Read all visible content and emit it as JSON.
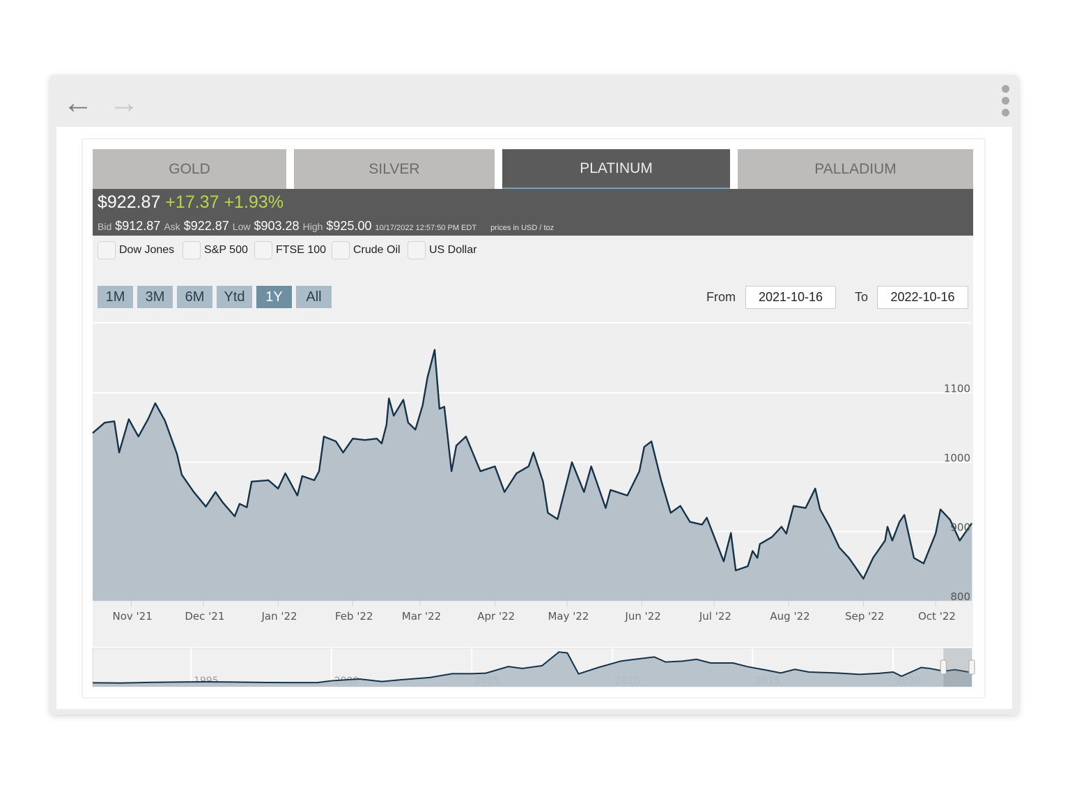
{
  "browser": {
    "back_icon": "arrow-left-icon",
    "forward_icon": "arrow-right-icon",
    "menu_icon": "kebab-menu-icon"
  },
  "tabs": [
    {
      "label": "GOLD"
    },
    {
      "label": "SILVER"
    },
    {
      "label": "PLATINUM",
      "active": true
    },
    {
      "label": "PALLADIUM"
    }
  ],
  "quote": {
    "price": "$922.87",
    "change": "+17.37",
    "change_pct": "+1.93%",
    "change_color": "#b7d650",
    "bid_label": "Bid",
    "bid": "$912.87",
    "ask_label": "Ask",
    "ask": "$922.87",
    "low_label": "Low",
    "low": "$903.28",
    "high_label": "High",
    "high": "$925.00",
    "timestamp": "10/17/2022 12:57:50 PM EDT",
    "units": "prices in USD / toz"
  },
  "compare": [
    {
      "label": "Dow Jones",
      "checked": false
    },
    {
      "label": "S&P 500",
      "checked": false
    },
    {
      "label": "FTSE 100",
      "checked": false
    },
    {
      "label": "Crude Oil",
      "checked": false
    },
    {
      "label": "US Dollar",
      "checked": false
    }
  ],
  "ranges": [
    {
      "label": "1M"
    },
    {
      "label": "3M"
    },
    {
      "label": "6M"
    },
    {
      "label": "Ytd"
    },
    {
      "label": "1Y",
      "active": true
    },
    {
      "label": "All"
    }
  ],
  "date_range": {
    "from_label": "From",
    "from": "2021-10-16",
    "to_label": "To",
    "to": "2022-10-16"
  },
  "chart_data": {
    "type": "area",
    "grid": true,
    "line_color": "#143349",
    "fill_color": "#b2bec6",
    "ylim": [
      800,
      1200
    ],
    "y_ticks": [
      "800",
      "900",
      "1000",
      "1100"
    ],
    "x_ticks": [
      {
        "label": "Nov '21",
        "date": "2021-11-01"
      },
      {
        "label": "Dec '21",
        "date": "2021-12-01"
      },
      {
        "label": "Jan '22",
        "date": "2022-01-01"
      },
      {
        "label": "Feb '22",
        "date": "2022-02-01"
      },
      {
        "label": "Mar '22",
        "date": "2022-03-01"
      },
      {
        "label": "Apr '22",
        "date": "2022-04-01"
      },
      {
        "label": "May '22",
        "date": "2022-05-01"
      },
      {
        "label": "Jun '22",
        "date": "2022-06-01"
      },
      {
        "label": "Jul '22",
        "date": "2022-07-01"
      },
      {
        "label": "Aug '22",
        "date": "2022-08-01"
      },
      {
        "label": "Sep '22",
        "date": "2022-09-01"
      },
      {
        "label": "Oct '22",
        "date": "2022-10-01"
      }
    ],
    "series": [
      {
        "points": [
          [
            "2021-10-16",
            1042
          ],
          [
            "2021-10-21",
            1057
          ],
          [
            "2021-10-25",
            1059
          ],
          [
            "2021-10-27",
            1014
          ],
          [
            "2021-10-31",
            1062
          ],
          [
            "2021-11-04",
            1037
          ],
          [
            "2021-11-08",
            1062
          ],
          [
            "2021-11-11",
            1085
          ],
          [
            "2021-11-15",
            1060
          ],
          [
            "2021-11-20",
            1012
          ],
          [
            "2021-11-22",
            982
          ],
          [
            "2021-11-27",
            957
          ],
          [
            "2021-12-02",
            936
          ],
          [
            "2021-12-06",
            957
          ],
          [
            "2021-12-09",
            942
          ],
          [
            "2021-12-14",
            922
          ],
          [
            "2021-12-16",
            940
          ],
          [
            "2021-12-19",
            935
          ],
          [
            "2021-12-21",
            972
          ],
          [
            "2021-12-28",
            974
          ],
          [
            "2022-01-01",
            962
          ],
          [
            "2022-01-04",
            984
          ],
          [
            "2022-01-09",
            952
          ],
          [
            "2022-01-11",
            980
          ],
          [
            "2022-01-16",
            974
          ],
          [
            "2022-01-18",
            987
          ],
          [
            "2022-01-20",
            1037
          ],
          [
            "2022-01-25",
            1030
          ],
          [
            "2022-01-28",
            1014
          ],
          [
            "2022-02-01",
            1034
          ],
          [
            "2022-02-06",
            1032
          ],
          [
            "2022-02-11",
            1034
          ],
          [
            "2022-02-13",
            1027
          ],
          [
            "2022-02-15",
            1054
          ],
          [
            "2022-02-16",
            1092
          ],
          [
            "2022-02-18",
            1067
          ],
          [
            "2022-02-22",
            1090
          ],
          [
            "2022-02-24",
            1057
          ],
          [
            "2022-02-27",
            1047
          ],
          [
            "2022-03-02",
            1082
          ],
          [
            "2022-03-04",
            1122
          ],
          [
            "2022-03-07",
            1162
          ],
          [
            "2022-03-09",
            1077
          ],
          [
            "2022-03-11",
            1080
          ],
          [
            "2022-03-14",
            987
          ],
          [
            "2022-03-16",
            1024
          ],
          [
            "2022-03-20",
            1037
          ],
          [
            "2022-03-26",
            987
          ],
          [
            "2022-04-01",
            994
          ],
          [
            "2022-04-05",
            957
          ],
          [
            "2022-04-10",
            984
          ],
          [
            "2022-04-15",
            994
          ],
          [
            "2022-04-17",
            1014
          ],
          [
            "2022-04-21",
            972
          ],
          [
            "2022-04-23",
            927
          ],
          [
            "2022-04-27",
            918
          ],
          [
            "2022-05-03",
            1000
          ],
          [
            "2022-05-08",
            957
          ],
          [
            "2022-05-11",
            994
          ],
          [
            "2022-05-15",
            954
          ],
          [
            "2022-05-17",
            934
          ],
          [
            "2022-05-19",
            960
          ],
          [
            "2022-05-26",
            952
          ],
          [
            "2022-05-31",
            987
          ],
          [
            "2022-06-02",
            1022
          ],
          [
            "2022-06-05",
            1030
          ],
          [
            "2022-06-09",
            974
          ],
          [
            "2022-06-13",
            927
          ],
          [
            "2022-06-17",
            937
          ],
          [
            "2022-06-21",
            914
          ],
          [
            "2022-06-26",
            910
          ],
          [
            "2022-06-28",
            920
          ],
          [
            "2022-07-02",
            884
          ],
          [
            "2022-07-05",
            857
          ],
          [
            "2022-07-08",
            898
          ],
          [
            "2022-07-10",
            844
          ],
          [
            "2022-07-15",
            850
          ],
          [
            "2022-07-17",
            872
          ],
          [
            "2022-07-19",
            862
          ],
          [
            "2022-07-20",
            882
          ],
          [
            "2022-07-25",
            892
          ],
          [
            "2022-07-29",
            907
          ],
          [
            "2022-07-31",
            897
          ],
          [
            "2022-08-03",
            937
          ],
          [
            "2022-08-08",
            934
          ],
          [
            "2022-08-12",
            962
          ],
          [
            "2022-08-14",
            932
          ],
          [
            "2022-08-18",
            907
          ],
          [
            "2022-08-22",
            877
          ],
          [
            "2022-08-26",
            862
          ],
          [
            "2022-09-01",
            832
          ],
          [
            "2022-09-05",
            862
          ],
          [
            "2022-09-10",
            887
          ],
          [
            "2022-09-11",
            907
          ],
          [
            "2022-09-13",
            887
          ],
          [
            "2022-09-16",
            914
          ],
          [
            "2022-09-18",
            924
          ],
          [
            "2022-09-22",
            862
          ],
          [
            "2022-09-26",
            854
          ],
          [
            "2022-10-01",
            897
          ],
          [
            "2022-10-03",
            932
          ],
          [
            "2022-10-07",
            917
          ],
          [
            "2022-10-11",
            887
          ],
          [
            "2022-10-13",
            897
          ],
          [
            "2022-10-16",
            912
          ]
        ]
      }
    ],
    "navigator": {
      "x_ticks": [
        "1995",
        "2000",
        "2005",
        "2010",
        "2015",
        "2020"
      ],
      "points": [
        [
          1991.5,
          360
        ],
        [
          1992.5,
          350
        ],
        [
          1993.5,
          380
        ],
        [
          1994.5,
          400
        ],
        [
          1995.5,
          415
        ],
        [
          1996.5,
          400
        ],
        [
          1997.5,
          380
        ],
        [
          1998.5,
          370
        ],
        [
          1999.5,
          370
        ],
        [
          2000,
          470
        ],
        [
          2001,
          570
        ],
        [
          2001.8,
          430
        ],
        [
          2002.5,
          530
        ],
        [
          2003.5,
          650
        ],
        [
          2004.3,
          860
        ],
        [
          2005,
          860
        ],
        [
          2005.5,
          890
        ],
        [
          2006.3,
          1250
        ],
        [
          2006.8,
          1150
        ],
        [
          2007.5,
          1300
        ],
        [
          2008.1,
          2050
        ],
        [
          2008.4,
          2000
        ],
        [
          2008.8,
          850
        ],
        [
          2009.5,
          1200
        ],
        [
          2010.3,
          1550
        ],
        [
          2010.8,
          1650
        ],
        [
          2011.5,
          1780
        ],
        [
          2011.9,
          1500
        ],
        [
          2012.5,
          1550
        ],
        [
          2013,
          1650
        ],
        [
          2013.5,
          1450
        ],
        [
          2014.3,
          1450
        ],
        [
          2014.8,
          1250
        ],
        [
          2015.5,
          1050
        ],
        [
          2016,
          900
        ],
        [
          2016.5,
          1100
        ],
        [
          2017,
          950
        ],
        [
          2018,
          900
        ],
        [
          2018.8,
          820
        ],
        [
          2019.5,
          880
        ],
        [
          2020,
          950
        ],
        [
          2020.3,
          720
        ],
        [
          2021,
          1200
        ],
        [
          2021.3,
          1150
        ],
        [
          2021.8,
          1000
        ],
        [
          2022.2,
          1080
        ],
        [
          2022.8,
          920
        ]
      ],
      "selected_from": "2021-10-16",
      "selected_to": "2022-10-16"
    }
  }
}
